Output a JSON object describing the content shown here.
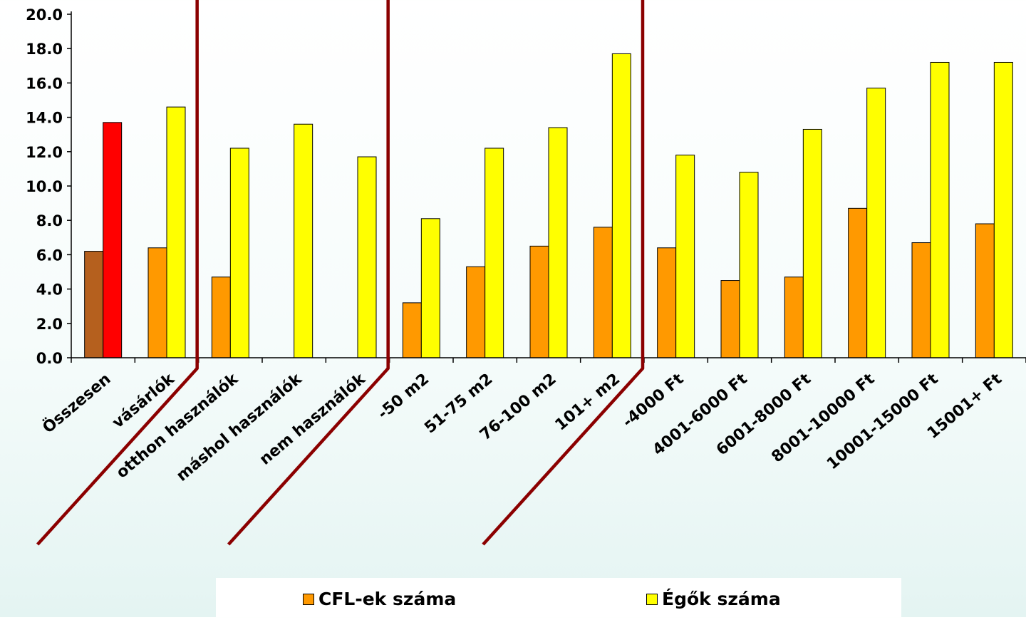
{
  "chart_data": {
    "type": "bar",
    "title": "",
    "xlabel": "",
    "ylabel": "",
    "ylim": [
      0,
      20
    ],
    "yticks": [
      "0.0",
      "2.0",
      "4.0",
      "6.0",
      "8.0",
      "10.0",
      "12.0",
      "14.0",
      "16.0",
      "18.0",
      "20.0"
    ],
    "categories": [
      "Összesen",
      "vásárlók",
      "otthon használók",
      "máshol használók",
      "nem használók",
      "-50 m2",
      "51-75 m2",
      "76-100 m2",
      "101+ m2",
      "-4000 Ft",
      "4001-6000 Ft",
      "6001-8000 Ft",
      "8001-10000 Ft",
      "10001-15000 Ft",
      "15001+ Ft"
    ],
    "series": [
      {
        "name": "CFL-ek száma",
        "color": "#ff9900",
        "highlight_color": "#b5601e",
        "values": [
          6.2,
          6.4,
          4.7,
          0,
          0,
          3.2,
          5.3,
          6.5,
          7.6,
          6.4,
          4.5,
          4.7,
          8.7,
          6.7,
          7.8
        ]
      },
      {
        "name": "Égők száma",
        "color": "#ffff00",
        "highlight_color": "#ff0000",
        "values": [
          13.7,
          14.6,
          12.2,
          13.6,
          11.7,
          8.1,
          12.2,
          13.4,
          17.7,
          11.8,
          10.8,
          13.3,
          15.7,
          17.2,
          17.2
        ]
      }
    ],
    "legend": "bottom",
    "separators_after": [
      1,
      4,
      8
    ],
    "separator_color": "#8b0000",
    "grid": false
  }
}
